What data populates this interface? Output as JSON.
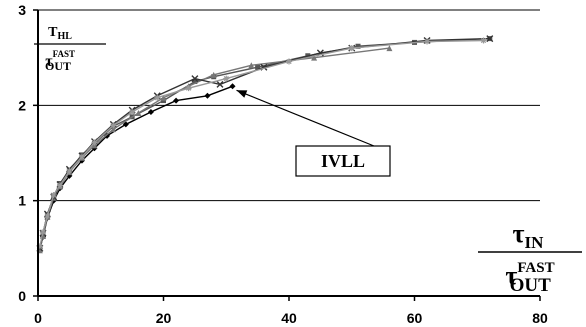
{
  "chart_data": {
    "type": "line",
    "xlim": [
      0,
      80
    ],
    "ylim": [
      0,
      3
    ],
    "x_ticks": [
      "0",
      "20",
      "40",
      "60",
      "80"
    ],
    "y_ticks": [
      "0",
      "1",
      "2",
      "3"
    ],
    "grid": "horizontal",
    "ylabel": {
      "num_main": "T",
      "num_sub": "HL",
      "den_main": "τ",
      "den_sup": "FAST",
      "den_sub": "OUT"
    },
    "xlabel": {
      "num_main": "τ",
      "num_sub": "IN",
      "den_main": "τ",
      "den_sup": "FAST",
      "den_sub": "OUT"
    },
    "annotation": {
      "text": "IVLL",
      "arrow_to": [
        31,
        2.2
      ]
    },
    "series": [
      {
        "color": "#000000",
        "marker": "diamond",
        "x": [
          0.3,
          0.8,
          1.5,
          2.5,
          3.5,
          5,
          7,
          9,
          11,
          14,
          18,
          22,
          27,
          31
        ],
        "y": [
          0.5,
          0.62,
          0.82,
          1.0,
          1.13,
          1.26,
          1.42,
          1.55,
          1.68,
          1.8,
          1.93,
          2.05,
          2.1,
          2.2
        ]
      },
      {
        "color": "#555555",
        "marker": "square",
        "x": [
          0.3,
          0.8,
          1.5,
          2.5,
          3.5,
          5,
          7,
          9,
          12,
          15,
          20,
          25,
          28,
          35,
          43,
          51,
          60,
          72
        ],
        "y": [
          0.5,
          0.65,
          0.85,
          1.05,
          1.18,
          1.32,
          1.48,
          1.6,
          1.78,
          1.88,
          2.05,
          2.25,
          2.3,
          2.4,
          2.52,
          2.62,
          2.66,
          2.7
        ]
      },
      {
        "color": "#777777",
        "marker": "triangle",
        "x": [
          0.3,
          0.8,
          1.5,
          2.5,
          3.5,
          5,
          7,
          9,
          12,
          16,
          20,
          24,
          28,
          34,
          44,
          56
        ],
        "y": [
          0.48,
          0.63,
          0.83,
          1.03,
          1.15,
          1.3,
          1.45,
          1.58,
          1.75,
          1.92,
          2.08,
          2.2,
          2.32,
          2.42,
          2.5,
          2.6
        ]
      },
      {
        "color": "#333333",
        "marker": "x",
        "x": [
          0.3,
          0.8,
          1.5,
          2.5,
          3.5,
          5,
          7,
          9,
          12,
          15,
          19,
          25,
          29,
          36,
          45,
          50,
          62,
          72
        ],
        "y": [
          0.5,
          0.66,
          0.86,
          1.04,
          1.17,
          1.33,
          1.47,
          1.62,
          1.8,
          1.95,
          2.1,
          2.28,
          2.22,
          2.4,
          2.55,
          2.6,
          2.68,
          2.7
        ]
      },
      {
        "color": "#999999",
        "marker": "star",
        "x": [
          0.3,
          0.8,
          1.5,
          2.5,
          3.5,
          5,
          7,
          9,
          12,
          15,
          19,
          24,
          30,
          40,
          50,
          62,
          71
        ],
        "y": [
          0.52,
          0.67,
          0.84,
          1.06,
          1.16,
          1.31,
          1.46,
          1.61,
          1.79,
          1.93,
          2.08,
          2.18,
          2.28,
          2.46,
          2.6,
          2.67,
          2.68
        ]
      }
    ]
  }
}
